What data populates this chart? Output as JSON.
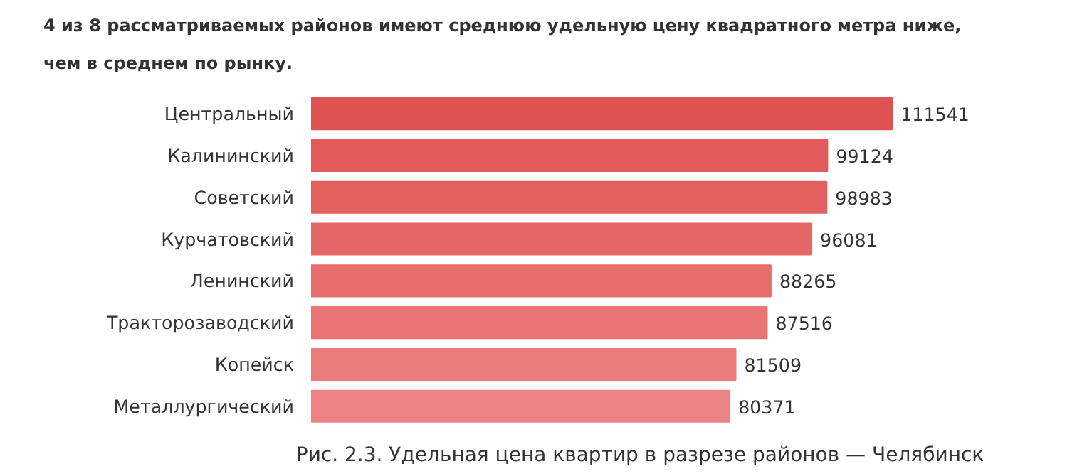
{
  "chart_data": {
    "type": "bar",
    "orientation": "horizontal",
    "title": "4 из 8 рассматриваемых районов имеют среднюю удельную цену квадратного метра ниже,\nчем в среднем по рынку.",
    "categories": [
      "Центральный",
      "Калининский",
      "Советский",
      "Курчатовский",
      "Ленинский",
      "Тракторозаводский",
      "Копейск",
      "Металлургический"
    ],
    "values": [
      111541,
      99124,
      98983,
      96081,
      88265,
      87516,
      81509,
      80371
    ],
    "colors": [
      "#e05353",
      "#e25a5a",
      "#e36060",
      "#e56666",
      "#e76d6d",
      "#e97474",
      "#eb7b7b",
      "#ed8383"
    ],
    "data_labels": true,
    "annotations": [
      "Рис. 2.3. Удельная цена квартир в разрезе районов — Челябинск"
    ]
  }
}
